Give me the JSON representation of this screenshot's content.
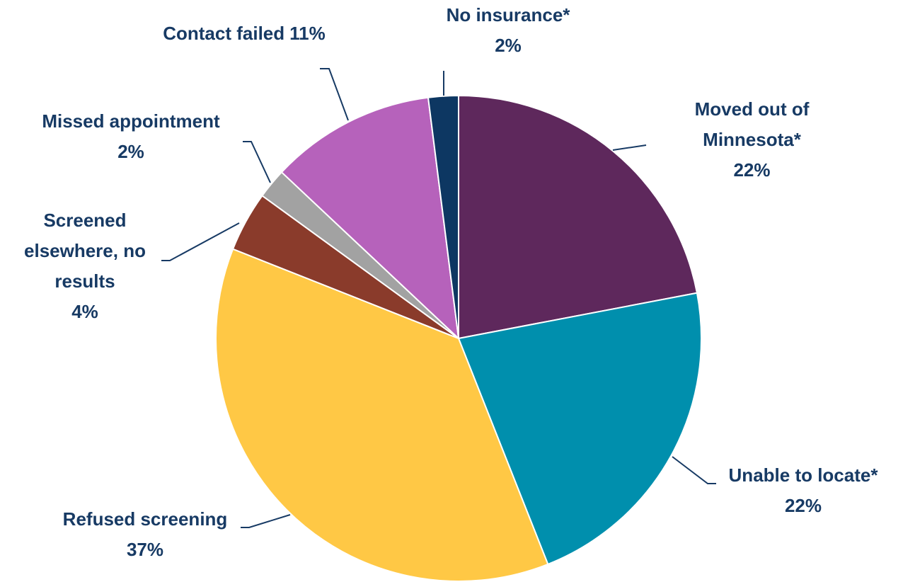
{
  "chart_data": {
    "type": "pie",
    "categories": [
      "Moved out of Minnesota*",
      "Unable to locate*",
      "Refused screening",
      "Screened elsewhere, no results",
      "Missed appointment",
      "Contact failed",
      "No insurance*"
    ],
    "values": [
      22,
      22,
      37,
      4,
      2,
      11,
      2
    ],
    "value_labels": [
      "22%",
      "22%",
      "37%",
      "4%",
      "2%",
      "11%",
      "2%"
    ],
    "colors": [
      "#5e285c",
      "#008fad",
      "#ffc845",
      "#8a3b2b",
      "#a2a2a2",
      "#b662bb",
      "#0d3762"
    ]
  }
}
